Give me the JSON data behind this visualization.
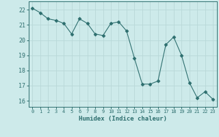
{
  "x": [
    0,
    1,
    2,
    3,
    4,
    5,
    6,
    7,
    8,
    9,
    10,
    11,
    12,
    13,
    14,
    15,
    16,
    17,
    18,
    19,
    20,
    21,
    22,
    23
  ],
  "y": [
    22.1,
    21.8,
    21.4,
    21.3,
    21.1,
    20.4,
    21.4,
    21.1,
    20.4,
    20.3,
    21.1,
    21.2,
    20.6,
    18.8,
    17.1,
    17.1,
    17.3,
    19.7,
    20.2,
    19.0,
    17.2,
    16.2,
    16.6,
    16.1
  ],
  "line_color": "#2d6e6e",
  "marker": "D",
  "marker_size": 2.5,
  "bg_color": "#cdeaea",
  "grid_color": "#b8d8d8",
  "tick_color": "#2d6e6e",
  "xlabel": "Humidex (Indice chaleur)",
  "ylabel_ticks": [
    16,
    17,
    18,
    19,
    20,
    21,
    22
  ],
  "xlim": [
    -0.5,
    23.5
  ],
  "ylim": [
    15.6,
    22.55
  ],
  "font_color": "#2d6e6e"
}
